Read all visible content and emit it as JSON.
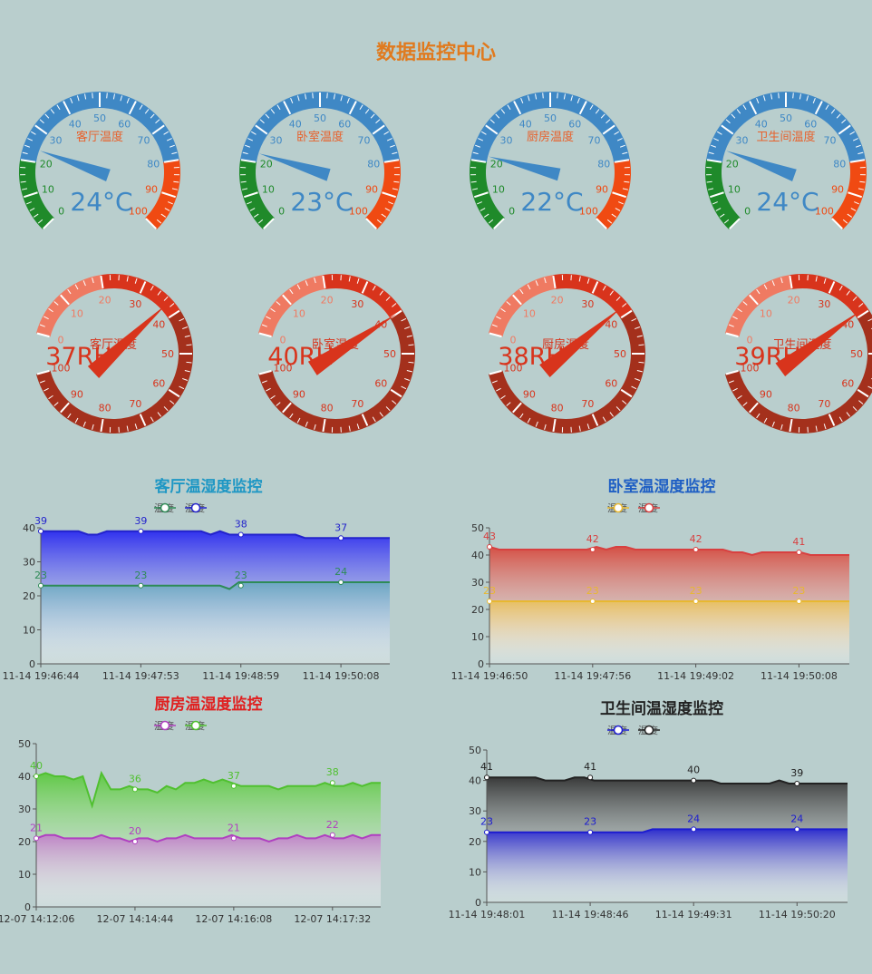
{
  "page_title": "数据监控中心",
  "temp_gauges": [
    {
      "label": "客厅温度",
      "value": 24,
      "display": "24°C"
    },
    {
      "label": "卧室温度",
      "value": 23,
      "display": "23°C"
    },
    {
      "label": "厨房温度",
      "value": 22,
      "display": "22°C"
    },
    {
      "label": "卫生间温度",
      "value": 24,
      "display": "24°C"
    }
  ],
  "temp_gauge_ticks": [
    "0",
    "10",
    "20",
    "30",
    "40",
    "50",
    "60",
    "70",
    "80",
    "90",
    "100"
  ],
  "hum_gauges": [
    {
      "label": "客厅湿度",
      "value": 37,
      "display": "37RH"
    },
    {
      "label": "卧室湿度",
      "value": 40,
      "display": "40RH"
    },
    {
      "label": "厨房湿度",
      "value": 38,
      "display": "38RH"
    },
    {
      "label": "卫生间湿度",
      "value": 39,
      "display": "39RH"
    }
  ],
  "hum_gauge_ticks": [
    "0",
    "10",
    "20",
    "30",
    "40",
    "50",
    "60",
    "70",
    "80",
    "90",
    "100"
  ],
  "colors": {
    "title": "#e07a1e",
    "temp_blue": "#3f88c5",
    "temp_green": "#1f8a2a",
    "temp_red": "#f04a12",
    "hum_light": "#ef7a62",
    "hum_mid": "#d8341c",
    "hum_dark": "#a4301c"
  },
  "chart_data": [
    {
      "type": "area",
      "title": "客厅温湿度监控",
      "title_color": "#1f97c4",
      "x": [
        "11-14 19:46:44",
        "11-14 19:47:53",
        "11-14 19:48:59",
        "11-14 19:50:08"
      ],
      "ylim": [
        0,
        40
      ],
      "yticks": [
        0,
        10,
        20,
        30,
        40
      ],
      "series": [
        {
          "name": "温度",
          "color": "#2e8b57",
          "fill": "#6aa7c0",
          "values": [
            23,
            23,
            23,
            24
          ],
          "line": [
            23,
            23,
            23,
            23,
            23,
            23,
            23,
            23,
            23,
            23,
            23,
            23,
            23,
            23,
            23,
            23,
            23,
            23,
            23,
            23,
            22,
            24,
            24,
            24,
            24,
            24,
            24,
            24,
            24,
            24,
            24,
            24,
            24,
            24,
            24,
            24,
            24,
            24
          ]
        },
        {
          "name": "湿度",
          "color": "#2323cc",
          "fill": "#2a2af0",
          "values": [
            39,
            39,
            38,
            37
          ],
          "line": [
            39,
            39,
            39,
            39,
            39,
            38,
            38,
            39,
            39,
            39,
            39,
            39,
            39,
            39,
            39,
            39,
            39,
            39,
            38,
            39,
            38,
            38,
            38,
            38,
            38,
            38,
            38,
            38,
            37,
            37,
            37,
            37,
            37,
            37,
            37,
            37,
            37,
            37
          ]
        }
      ]
    },
    {
      "type": "area",
      "title": "卧室温湿度监控",
      "title_color": "#1f5fc4",
      "x": [
        "11-14 19:46:50",
        "11-14 19:47:56",
        "11-14 19:49:02",
        "11-14 19:50:08"
      ],
      "ylim": [
        0,
        50
      ],
      "yticks": [
        0,
        10,
        20,
        30,
        40,
        50
      ],
      "series": [
        {
          "name": "温度",
          "color": "#e8b830",
          "fill": "#e8c060",
          "values": [
            23,
            23,
            23,
            23
          ],
          "line": [
            23,
            23,
            23,
            23,
            23,
            23,
            23,
            23,
            23,
            23,
            23,
            23,
            23,
            23,
            23,
            23,
            23,
            23,
            23,
            23,
            23,
            23,
            23,
            23,
            23,
            23,
            23,
            23,
            23,
            23,
            23,
            23,
            23,
            23,
            23,
            23,
            23,
            23
          ]
        },
        {
          "name": "湿度",
          "color": "#d84040",
          "fill": "#d64a3e",
          "values": [
            43,
            42,
            42,
            41
          ],
          "line": [
            43,
            42,
            42,
            42,
            42,
            42,
            42,
            42,
            42,
            42,
            42,
            43,
            42,
            43,
            43,
            42,
            42,
            42,
            42,
            42,
            42,
            42,
            42,
            42,
            42,
            41,
            41,
            40,
            41,
            41,
            41,
            41,
            41,
            40,
            40,
            40,
            40,
            40
          ]
        }
      ]
    },
    {
      "type": "area",
      "title": "厨房温湿度监控",
      "title_color": "#e02020",
      "x": [
        "12-07 14:12:06",
        "12-07 14:14:44",
        "12-07 14:16:08",
        "12-07 14:17:32"
      ],
      "ylim": [
        0,
        50
      ],
      "yticks": [
        0,
        10,
        20,
        30,
        40,
        50
      ],
      "series": [
        {
          "name": "温度",
          "color": "#b040c0",
          "fill": "#c080c8",
          "values": [
            21,
            20,
            21,
            22
          ],
          "line": [
            21,
            22,
            22,
            21,
            21,
            21,
            21,
            22,
            21,
            21,
            20,
            21,
            21,
            20,
            21,
            21,
            22,
            21,
            21,
            21,
            21,
            22,
            21,
            21,
            21,
            20,
            21,
            21,
            22,
            21,
            21,
            22,
            21,
            21,
            22,
            21,
            22,
            22
          ]
        },
        {
          "name": "湿度",
          "color": "#50c030",
          "fill": "#5cc840",
          "values": [
            40,
            36,
            37,
            38
          ],
          "line": [
            40,
            41,
            40,
            40,
            39,
            40,
            31,
            41,
            36,
            36,
            37,
            36,
            36,
            35,
            37,
            36,
            38,
            38,
            39,
            38,
            39,
            38,
            37,
            37,
            37,
            37,
            36,
            37,
            37,
            37,
            37,
            38,
            37,
            37,
            38,
            37,
            38,
            38
          ]
        }
      ]
    },
    {
      "type": "area",
      "title": "卫生间温湿度监控",
      "title_color": "#222222",
      "x": [
        "11-14 19:48:01",
        "11-14 19:48:46",
        "11-14 19:49:31",
        "11-14 19:50:20"
      ],
      "ylim": [
        0,
        50
      ],
      "yticks": [
        0,
        10,
        20,
        30,
        40,
        50
      ],
      "series": [
        {
          "name": "温度",
          "color": "#1c1cd0",
          "fill": "#2a2ad0",
          "values": [
            23,
            23,
            24,
            24
          ],
          "line": [
            23,
            23,
            23,
            23,
            23,
            23,
            23,
            23,
            23,
            23,
            23,
            23,
            23,
            23,
            23,
            23,
            23,
            24,
            24,
            24,
            24,
            24,
            24,
            24,
            24,
            24,
            24,
            24,
            24,
            24,
            24,
            24,
            24,
            24,
            24,
            24,
            24,
            24
          ]
        },
        {
          "name": "湿度",
          "color": "#222222",
          "fill": "#333333",
          "values": [
            41,
            41,
            40,
            39
          ],
          "line": [
            41,
            41,
            41,
            41,
            41,
            41,
            40,
            40,
            40,
            41,
            41,
            40,
            40,
            40,
            40,
            40,
            40,
            40,
            40,
            40,
            40,
            40,
            40,
            40,
            39,
            39,
            39,
            39,
            39,
            39,
            40,
            39,
            39,
            39,
            39,
            39,
            39,
            39
          ]
        }
      ]
    }
  ]
}
